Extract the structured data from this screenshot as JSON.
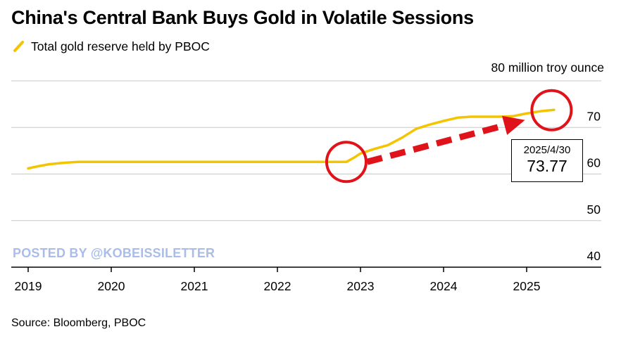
{
  "title": "China's Central Bank Buys Gold in Volatile Sessions",
  "legend": {
    "label": "Total gold reserve held by PBOC"
  },
  "unit_label": "80 million troy ounce",
  "source": "Source: Bloomberg, PBOC",
  "watermark": "POSTED BY @KOBEISSILETTER",
  "callout": {
    "date": "2025/4/30",
    "value": "73.77"
  },
  "colors": {
    "series": "#f5c400",
    "grid": "#c8c8c8",
    "annotation": "#e0131b",
    "watermark": "#a9bde8"
  },
  "chart_data": {
    "type": "line",
    "title": "China's Central Bank Buys Gold in Volatile Sessions",
    "ylabel": "80 million troy ounce",
    "ylim": [
      40,
      80
    ],
    "yticks": [
      40,
      50,
      60,
      70
    ],
    "xlim": [
      2019.0,
      2025.75
    ],
    "xticks": [
      {
        "label": "2019",
        "x": 2019.0
      },
      {
        "label": "2020",
        "x": 2020.0
      },
      {
        "label": "2021",
        "x": 2021.0
      },
      {
        "label": "2022",
        "x": 2022.0
      },
      {
        "label": "2023",
        "x": 2023.0
      },
      {
        "label": "2024",
        "x": 2024.0
      },
      {
        "label": "2025",
        "x": 2025.0
      }
    ],
    "grid": true,
    "legend_position": "top-left",
    "series": [
      {
        "name": "Total gold reserve held by PBOC",
        "points": [
          [
            2019.0,
            61.2
          ],
          [
            2019.1,
            61.6
          ],
          [
            2019.25,
            62.1
          ],
          [
            2019.42,
            62.4
          ],
          [
            2019.6,
            62.6
          ],
          [
            2019.8,
            62.6
          ],
          [
            2020.5,
            62.6
          ],
          [
            2021.5,
            62.6
          ],
          [
            2022.5,
            62.6
          ],
          [
            2022.83,
            62.6
          ],
          [
            2022.92,
            63.5
          ],
          [
            2023.0,
            64.4
          ],
          [
            2023.17,
            65.4
          ],
          [
            2023.33,
            66.2
          ],
          [
            2023.5,
            67.8
          ],
          [
            2023.67,
            69.7
          ],
          [
            2023.83,
            70.6
          ],
          [
            2024.0,
            71.4
          ],
          [
            2024.17,
            72.1
          ],
          [
            2024.33,
            72.3
          ],
          [
            2024.5,
            72.3
          ],
          [
            2024.67,
            72.3
          ],
          [
            2024.83,
            72.4
          ],
          [
            2025.0,
            73.0
          ],
          [
            2025.17,
            73.5
          ],
          [
            2025.33,
            73.77
          ]
        ]
      }
    ],
    "annotations": [
      {
        "type": "circle",
        "x": 2022.83,
        "y": 62.6
      },
      {
        "type": "circle",
        "x": 2025.3,
        "y": 73.7
      },
      {
        "type": "dashed-arrow",
        "from": [
          2023.08,
          62.6
        ],
        "to": [
          2024.98,
          71.6
        ]
      },
      {
        "type": "callout",
        "x": 2025.33,
        "y": 73.77,
        "date": "2025/4/30",
        "value": "73.77"
      }
    ]
  }
}
